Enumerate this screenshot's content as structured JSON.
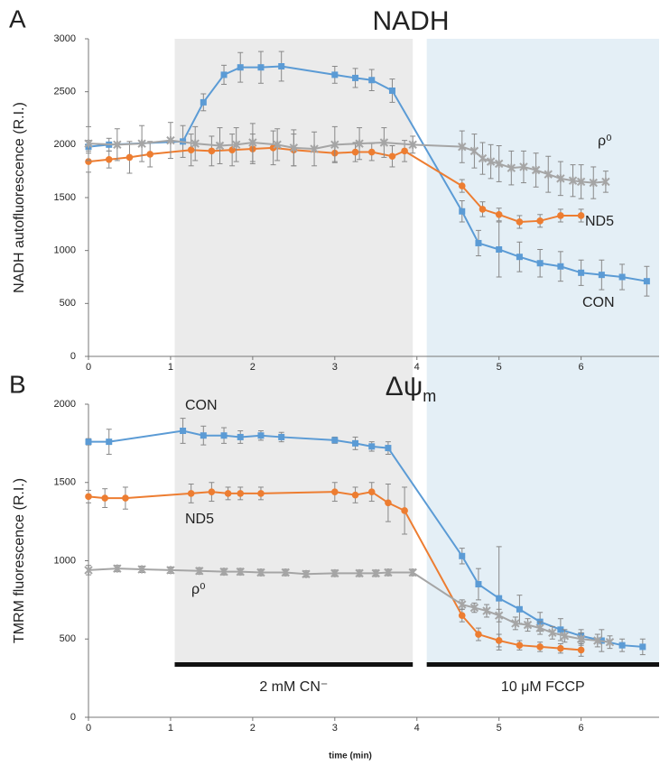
{
  "chart_data": [
    {
      "type": "line",
      "panel": "A",
      "title": "NADH",
      "ylabel": "NADH autofluorescence (R.I.)",
      "xlim": [
        0,
        6.95
      ],
      "xticks": [
        0,
        1,
        2,
        3,
        4,
        5,
        6
      ],
      "ylim": [
        0,
        3000
      ],
      "yticks": [
        0,
        500,
        1000,
        1500,
        2000,
        2500,
        3000
      ],
      "series": [
        {
          "name": "CON",
          "color": "#5b9bd5",
          "marker": "square",
          "x": [
            0,
            0.25,
            1.15,
            1.4,
            1.65,
            1.85,
            2.1,
            2.35,
            3.0,
            3.25,
            3.45,
            3.7,
            4.55,
            4.75,
            5.0,
            5.25,
            5.5,
            5.75,
            6.0,
            6.25,
            6.5,
            6.8
          ],
          "values": [
            1980,
            2000,
            2030,
            2400,
            2660,
            2730,
            2730,
            2740,
            2660,
            2630,
            2610,
            2510,
            1370,
            1070,
            1010,
            940,
            880,
            850,
            790,
            770,
            750,
            710
          ],
          "errors": [
            60,
            60,
            150,
            80,
            90,
            140,
            150,
            140,
            80,
            90,
            100,
            110,
            100,
            120,
            260,
            140,
            130,
            140,
            120,
            140,
            120,
            140
          ]
        },
        {
          "name": "ND5",
          "color": "#ed7d31",
          "marker": "circle",
          "x": [
            0,
            0.25,
            0.5,
            0.75,
            1.25,
            1.5,
            1.75,
            2.0,
            2.25,
            2.5,
            3.0,
            3.25,
            3.45,
            3.7,
            3.85,
            4.55,
            4.8,
            5.0,
            5.25,
            5.5,
            5.75,
            6.0
          ],
          "values": [
            1840,
            1860,
            1880,
            1910,
            1950,
            1940,
            1950,
            1960,
            1970,
            1950,
            1920,
            1930,
            1930,
            1890,
            1940,
            1610,
            1390,
            1340,
            1270,
            1280,
            1330,
            1330
          ],
          "errors": [
            100,
            80,
            150,
            120,
            150,
            140,
            150,
            140,
            160,
            150,
            80,
            90,
            80,
            100,
            100,
            60,
            70,
            60,
            60,
            60,
            60,
            60
          ]
        },
        {
          "name": "ρ⁰",
          "color": "#a5a5a5",
          "marker": "star",
          "x": [
            0,
            0.35,
            0.65,
            1.0,
            1.3,
            1.6,
            1.8,
            2.0,
            2.3,
            2.5,
            2.75,
            3.0,
            3.3,
            3.6,
            3.95,
            4.55,
            4.7,
            4.8,
            4.9,
            5.0,
            5.15,
            5.3,
            5.45,
            5.6,
            5.75,
            5.9,
            6.0,
            6.15,
            6.3
          ],
          "values": [
            2010,
            2000,
            2010,
            2040,
            2010,
            1990,
            2000,
            2020,
            2000,
            1970,
            1960,
            2000,
            2010,
            2020,
            2000,
            1980,
            1940,
            1870,
            1840,
            1820,
            1780,
            1790,
            1760,
            1720,
            1680,
            1660,
            1650,
            1640,
            1650
          ],
          "errors": [
            160,
            150,
            170,
            170,
            160,
            170,
            160,
            180,
            150,
            170,
            160,
            170,
            150,
            140,
            80,
            150,
            160,
            150,
            160,
            170,
            160,
            150,
            160,
            170,
            160,
            150,
            160,
            150,
            100
          ]
        }
      ]
    },
    {
      "type": "line",
      "panel": "B",
      "title": "Δψ",
      "title_subscript": "m",
      "ylabel": "TMRM fluorescence (R.I.)",
      "xlabel": "time (min)",
      "xlim": [
        0,
        6.95
      ],
      "xticks": [
        0,
        1,
        2,
        3,
        4,
        5,
        6
      ],
      "ylim": [
        0,
        2000
      ],
      "yticks": [
        0,
        500,
        1000,
        1500,
        2000
      ],
      "treatments": [
        {
          "label": "2 mM CN⁻",
          "x": [
            1.05,
            3.95
          ],
          "color": "#ebebeb"
        },
        {
          "label": "10 μM FCCP",
          "x": [
            4.12,
            6.95
          ],
          "color": "#e4eff6"
        }
      ],
      "series": [
        {
          "name": "CON",
          "color": "#5b9bd5",
          "marker": "square",
          "x": [
            0,
            0.25,
            1.15,
            1.4,
            1.65,
            1.85,
            2.1,
            2.35,
            3.0,
            3.25,
            3.45,
            3.65,
            4.55,
            4.75,
            5.0,
            5.25,
            5.5,
            5.75,
            6.0,
            6.25,
            6.5,
            6.75
          ],
          "values": [
            1760,
            1760,
            1830,
            1800,
            1800,
            1790,
            1800,
            1790,
            1770,
            1750,
            1730,
            1720,
            1030,
            850,
            760,
            690,
            610,
            560,
            520,
            490,
            460,
            450
          ],
          "errors": [
            20,
            80,
            80,
            60,
            50,
            40,
            30,
            30,
            20,
            40,
            30,
            40,
            50,
            100,
            330,
            90,
            60,
            70,
            40,
            70,
            40,
            50
          ]
        },
        {
          "name": "ND5",
          "color": "#ed7d31",
          "marker": "circle",
          "x": [
            0,
            0.2,
            0.45,
            1.25,
            1.5,
            1.7,
            1.85,
            2.1,
            3.0,
            3.25,
            3.45,
            3.65,
            3.85,
            4.55,
            4.75,
            5.0,
            5.25,
            5.5,
            5.75,
            6.0
          ],
          "values": [
            1410,
            1400,
            1400,
            1430,
            1440,
            1430,
            1430,
            1430,
            1440,
            1420,
            1440,
            1370,
            1320,
            650,
            530,
            490,
            460,
            450,
            440,
            430
          ],
          "errors": [
            40,
            60,
            70,
            60,
            60,
            40,
            40,
            40,
            60,
            50,
            60,
            120,
            150,
            40,
            40,
            40,
            30,
            30,
            30,
            40
          ]
        },
        {
          "name": "ρ⁰",
          "color": "#a5a5a5",
          "marker": "star",
          "x": [
            0,
            0.35,
            0.65,
            1.0,
            1.35,
            1.65,
            1.85,
            2.1,
            2.4,
            2.65,
            3.0,
            3.3,
            3.5,
            3.65,
            3.95,
            4.55,
            4.7,
            4.85,
            5.0,
            5.2,
            5.35,
            5.5,
            5.65,
            5.8,
            6.0,
            6.2,
            6.35
          ],
          "values": [
            940,
            950,
            945,
            940,
            935,
            930,
            930,
            925,
            925,
            915,
            920,
            920,
            920,
            925,
            925,
            720,
            700,
            680,
            650,
            600,
            590,
            570,
            540,
            520,
            500,
            490,
            480
          ],
          "errors": [
            30,
            20,
            20,
            20,
            20,
            20,
            20,
            20,
            20,
            20,
            20,
            20,
            20,
            20,
            20,
            30,
            30,
            40,
            40,
            40,
            40,
            40,
            40,
            40,
            40,
            40,
            40
          ]
        }
      ]
    }
  ]
}
